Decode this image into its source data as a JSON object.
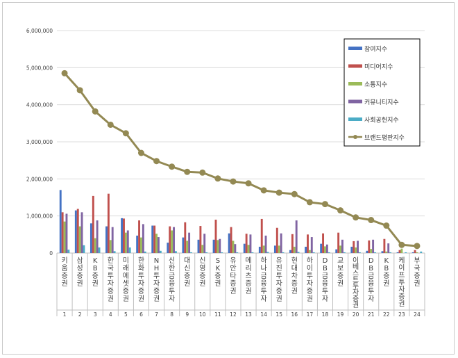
{
  "chart_data": {
    "type": "bar",
    "ylim": [
      0,
      6000000
    ],
    "yticks": [
      "0",
      "1,000,000",
      "2,000,000",
      "3,000,000",
      "4,000,000",
      "5,000,000",
      "6,000,000"
    ],
    "ytick_values": [
      0,
      1000000,
      2000000,
      3000000,
      4000000,
      5000000,
      6000000
    ],
    "grid": true,
    "legend_position": "top-right",
    "ranks": [
      "1",
      "2",
      "3",
      "4",
      "5",
      "6",
      "7",
      "8",
      "9",
      "10",
      "11",
      "12",
      "13",
      "14",
      "15",
      "16",
      "17",
      "18",
      "19",
      "20",
      "21",
      "22",
      "23",
      "24"
    ],
    "categories": [
      "키움증권",
      "삼성증권",
      "KB증권",
      "한국투자증권",
      "미래에셋증권",
      "한화투자증권",
      "NH투자증권",
      "신한금융투자",
      "대신증권",
      "신영증권",
      "SK증권",
      "유안타증권",
      "메리츠증권",
      "하나금융투자",
      "유진투자증권",
      "현대차증권",
      "하이투자증권",
      "DB금융투자",
      "교보증권",
      "이베스트투자증권",
      "DB금융투자",
      "KB증권",
      "케이프투자증권",
      "부국증권"
    ],
    "series": [
      {
        "name": "참여지수",
        "type": "bar",
        "color": "#4472c4",
        "values": [
          1700000,
          1150000,
          800000,
          720000,
          940000,
          470000,
          740000,
          280000,
          420000,
          360000,
          360000,
          530000,
          250000,
          170000,
          200000,
          80000,
          170000,
          250000,
          100000,
          170000,
          60000,
          50000,
          20000,
          20000
        ]
      },
      {
        "name": "미디어지수",
        "type": "bar",
        "color": "#c0504d",
        "values": [
          1100000,
          1190000,
          1540000,
          1600000,
          930000,
          880000,
          740000,
          720000,
          830000,
          730000,
          900000,
          700000,
          520000,
          920000,
          680000,
          510000,
          500000,
          530000,
          550000,
          320000,
          340000,
          380000,
          80000,
          80000
        ]
      },
      {
        "name": "소통지수",
        "type": "bar",
        "color": "#9bbb59",
        "values": [
          850000,
          720000,
          400000,
          350000,
          550000,
          420000,
          520000,
          610000,
          330000,
          220000,
          350000,
          330000,
          220000,
          200000,
          200000,
          170000,
          80000,
          180000,
          200000,
          150000,
          110000,
          40000,
          120000,
          20000
        ]
      },
      {
        "name": "커뮤니티지수",
        "type": "bar",
        "color": "#8064a2",
        "values": [
          1060000,
          1100000,
          880000,
          700000,
          610000,
          780000,
          430000,
          700000,
          550000,
          520000,
          380000,
          240000,
          500000,
          470000,
          530000,
          880000,
          430000,
          230000,
          360000,
          330000,
          360000,
          260000,
          0,
          0
        ]
      },
      {
        "name": "사회공헌지수",
        "type": "bar",
        "color": "#4bacc6",
        "values": [
          90000,
          210000,
          150000,
          50000,
          150000,
          40000,
          60000,
          50000,
          20000,
          20000,
          20000,
          20000,
          20000,
          30000,
          20000,
          30000,
          20000,
          20000,
          20000,
          20000,
          20000,
          20000,
          20000,
          40000
        ]
      },
      {
        "name": "브랜드평판지수",
        "type": "line",
        "color": "#938953",
        "values": [
          4850000,
          4390000,
          3820000,
          3460000,
          3230000,
          2700000,
          2480000,
          2330000,
          2190000,
          2170000,
          2010000,
          1930000,
          1880000,
          1690000,
          1630000,
          1590000,
          1370000,
          1320000,
          1150000,
          960000,
          890000,
          740000,
          220000,
          190000
        ]
      }
    ]
  }
}
